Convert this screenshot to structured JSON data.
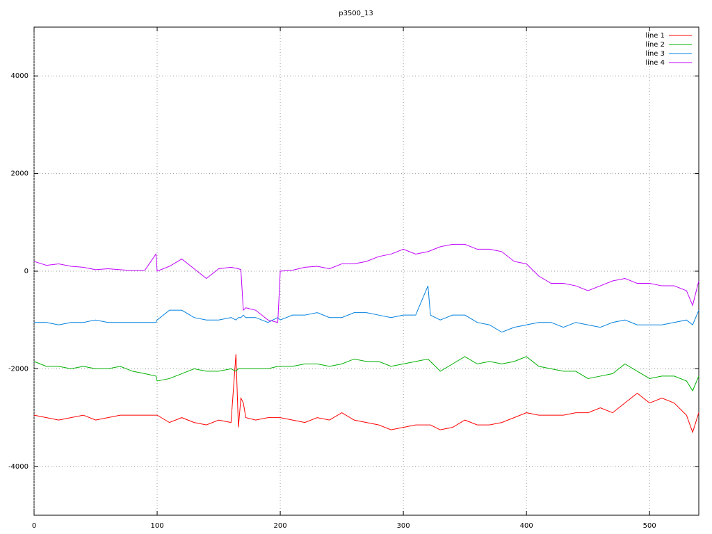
{
  "chart_data": {
    "type": "line",
    "title": "p3500_13",
    "x": [
      0,
      10,
      20,
      30,
      40,
      50,
      60,
      70,
      80,
      90,
      99,
      100,
      110,
      120,
      130,
      140,
      150,
      160,
      164,
      166,
      168,
      170,
      172,
      180,
      190,
      198,
      200,
      210,
      220,
      230,
      240,
      250,
      260,
      270,
      280,
      290,
      300,
      310,
      320,
      322,
      330,
      340,
      350,
      360,
      370,
      380,
      390,
      400,
      410,
      420,
      430,
      440,
      450,
      460,
      470,
      480,
      490,
      500,
      510,
      520,
      530,
      535,
      540
    ],
    "series": [
      {
        "name": "line 1",
        "color": "#ff0000",
        "values": [
          -2950,
          -3000,
          -3050,
          -3000,
          -2950,
          -3050,
          -3000,
          -2950,
          -2950,
          -2950,
          -2950,
          -2950,
          -3100,
          -3000,
          -3100,
          -3150,
          -3050,
          -3100,
          -1700,
          -3200,
          -2600,
          -2700,
          -3000,
          -3050,
          -3000,
          -3000,
          -3000,
          -3050,
          -3100,
          -3000,
          -3050,
          -2900,
          -3050,
          -3100,
          -3150,
          -3250,
          -3200,
          -3150,
          -3150,
          -3150,
          -3250,
          -3200,
          -3050,
          -3150,
          -3150,
          -3100,
          -3000,
          -2900,
          -2950,
          -2950,
          -2950,
          -2900,
          -2900,
          -2800,
          -2900,
          -2700,
          -2500,
          -2700,
          -2600,
          -2700,
          -2950,
          -3300,
          -2900
        ]
      },
      {
        "name": "line 2",
        "color": "#00b000",
        "values": [
          -1850,
          -1950,
          -1950,
          -2000,
          -1950,
          -2000,
          -2000,
          -1950,
          -2050,
          -2100,
          -2150,
          -2250,
          -2200,
          -2100,
          -2000,
          -2050,
          -2050,
          -2000,
          -2050,
          -2000,
          -2000,
          -2000,
          -2000,
          -2000,
          -2000,
          -1950,
          -1950,
          -1950,
          -1900,
          -1900,
          -1950,
          -1900,
          -1800,
          -1850,
          -1850,
          -1950,
          -1900,
          -1850,
          -1800,
          -1850,
          -2050,
          -1900,
          -1750,
          -1900,
          -1850,
          -1900,
          -1850,
          -1750,
          -1950,
          -2000,
          -2050,
          -2050,
          -2200,
          -2150,
          -2100,
          -1900,
          -2050,
          -2200,
          -2150,
          -2150,
          -2250,
          -2450,
          -2150
        ]
      },
      {
        "name": "line 3",
        "color": "#0080e0",
        "values": [
          -1050,
          -1050,
          -1100,
          -1050,
          -1050,
          -1000,
          -1050,
          -1050,
          -1050,
          -1050,
          -1050,
          -1000,
          -800,
          -800,
          -950,
          -1000,
          -1000,
          -950,
          -1000,
          -950,
          -950,
          -900,
          -950,
          -950,
          -1050,
          -950,
          -1000,
          -900,
          -900,
          -850,
          -950,
          -950,
          -850,
          -850,
          -900,
          -950,
          -900,
          -900,
          -300,
          -900,
          -1000,
          -900,
          -900,
          -1050,
          -1100,
          -1250,
          -1150,
          -1100,
          -1050,
          -1050,
          -1150,
          -1050,
          -1100,
          -1150,
          -1050,
          -1000,
          -1100,
          -1100,
          -1100,
          -1050,
          -1000,
          -1100,
          -800
        ]
      },
      {
        "name": "line 4",
        "color": "#c000ff",
        "values": [
          200,
          120,
          150,
          100,
          80,
          30,
          50,
          30,
          10,
          20,
          350,
          0,
          100,
          250,
          50,
          -150,
          50,
          80,
          60,
          50,
          30,
          -800,
          -750,
          -800,
          -1000,
          -1050,
          0,
          20,
          80,
          100,
          50,
          150,
          150,
          200,
          300,
          350,
          450,
          350,
          400,
          420,
          500,
          550,
          550,
          450,
          450,
          400,
          200,
          150,
          -100,
          -250,
          -250,
          -300,
          -400,
          -300,
          -200,
          -150,
          -250,
          -250,
          -300,
          -300,
          -400,
          -700,
          -200
        ]
      }
    ],
    "xlim": [
      0,
      540
    ],
    "xticks": [
      0,
      100,
      200,
      300,
      400,
      500
    ],
    "ylim": [
      -5000,
      5000
    ],
    "yticks": [
      -4000,
      -2000,
      0,
      2000,
      4000
    ],
    "grid": true,
    "legend": "top-right"
  }
}
